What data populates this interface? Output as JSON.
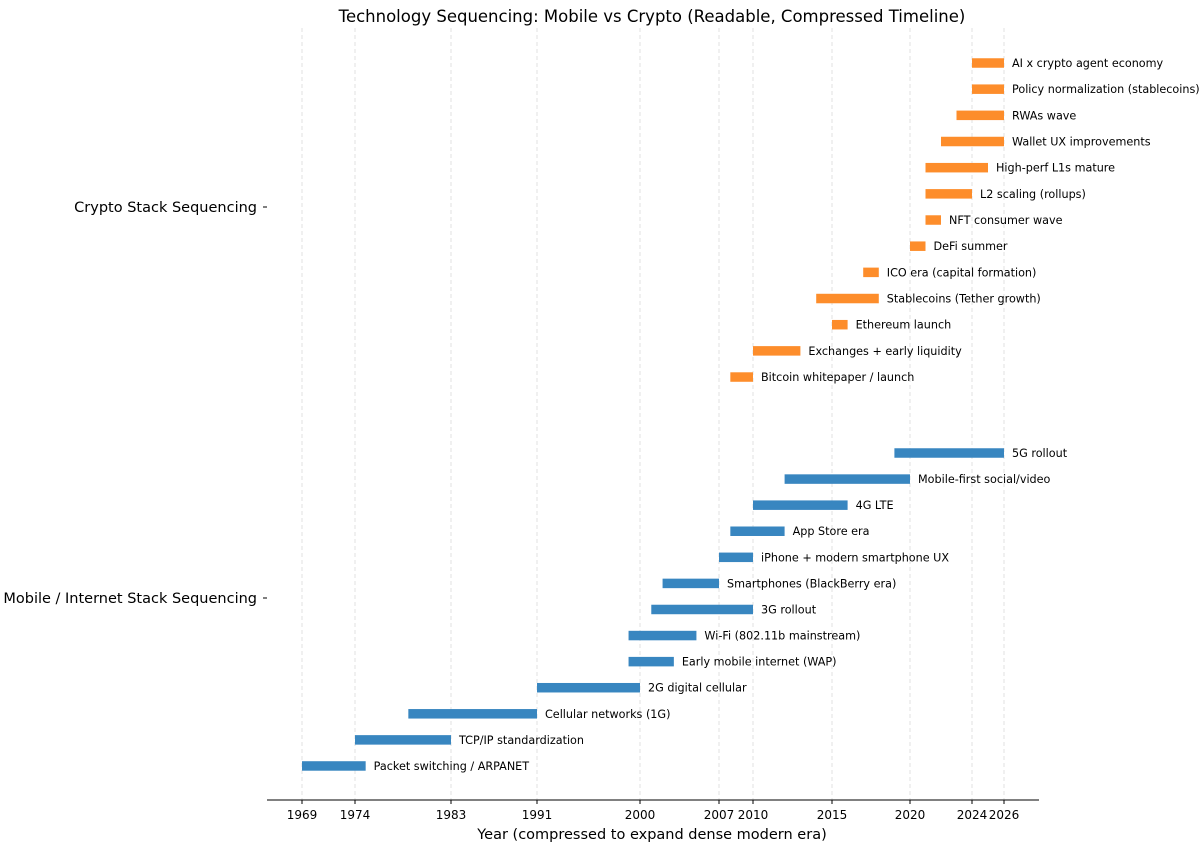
{
  "chart_data": {
    "type": "timeline",
    "title": "Technology Sequencing: Mobile vs Crypto (Readable, Compressed Timeline)",
    "xlabel": "Year (compressed to expand dense modern era)",
    "x_ticks": [
      1969,
      1974,
      1983,
      1991,
      2000,
      2007,
      2010,
      2015,
      2020,
      2024,
      2026
    ],
    "grid": "x-dashed",
    "categories": [
      "Crypto Stack Sequencing",
      "Mobile / Internet Stack Sequencing"
    ],
    "series": [
      {
        "name": "Crypto Stack Sequencing",
        "color": "#fd8d2b",
        "items": [
          {
            "label": "AI x crypto agent economy",
            "start": 2024,
            "end": 2026
          },
          {
            "label": "Policy normalization (stablecoins)",
            "start": 2024,
            "end": 2026
          },
          {
            "label": "RWAs wave",
            "start": 2023,
            "end": 2026
          },
          {
            "label": "Wallet UX improvements",
            "start": 2022,
            "end": 2026
          },
          {
            "label": "High-perf L1s mature",
            "start": 2021,
            "end": 2025
          },
          {
            "label": "L2 scaling (rollups)",
            "start": 2021,
            "end": 2024
          },
          {
            "label": "NFT consumer wave",
            "start": 2021,
            "end": 2022
          },
          {
            "label": "DeFi summer",
            "start": 2020,
            "end": 2021
          },
          {
            "label": "ICO era (capital formation)",
            "start": 2017,
            "end": 2018
          },
          {
            "label": "Stablecoins (Tether growth)",
            "start": 2014,
            "end": 2018
          },
          {
            "label": "Ethereum launch",
            "start": 2015,
            "end": 2016
          },
          {
            "label": "Exchanges + early liquidity",
            "start": 2010,
            "end": 2013
          },
          {
            "label": "Bitcoin whitepaper / launch",
            "start": 2008,
            "end": 2010
          }
        ]
      },
      {
        "name": "Mobile / Internet Stack Sequencing",
        "color": "#3886c0",
        "items": [
          {
            "label": "5G rollout",
            "start": 2019,
            "end": 2026
          },
          {
            "label": "Mobile-first social/video",
            "start": 2012,
            "end": 2020
          },
          {
            "label": "4G LTE",
            "start": 2010,
            "end": 2016
          },
          {
            "label": "App Store era",
            "start": 2008,
            "end": 2012
          },
          {
            "label": "iPhone + modern smartphone UX",
            "start": 2007,
            "end": 2010
          },
          {
            "label": "Smartphones (BlackBerry era)",
            "start": 2002,
            "end": 2007
          },
          {
            "label": "3G rollout",
            "start": 2001,
            "end": 2010
          },
          {
            "label": "Wi-Fi (802.11b mainstream)",
            "start": 1999,
            "end": 2005
          },
          {
            "label": "Early mobile internet (WAP)",
            "start": 1999,
            "end": 2003
          },
          {
            "label": "2G digital cellular",
            "start": 1991,
            "end": 2000
          },
          {
            "label": "Cellular networks (1G)",
            "start": 1979,
            "end": 1991
          },
          {
            "label": "TCP/IP standardization",
            "start": 1974,
            "end": 1983
          },
          {
            "label": "Packet switching / ARPANET",
            "start": 1969,
            "end": 1975
          }
        ]
      }
    ]
  }
}
